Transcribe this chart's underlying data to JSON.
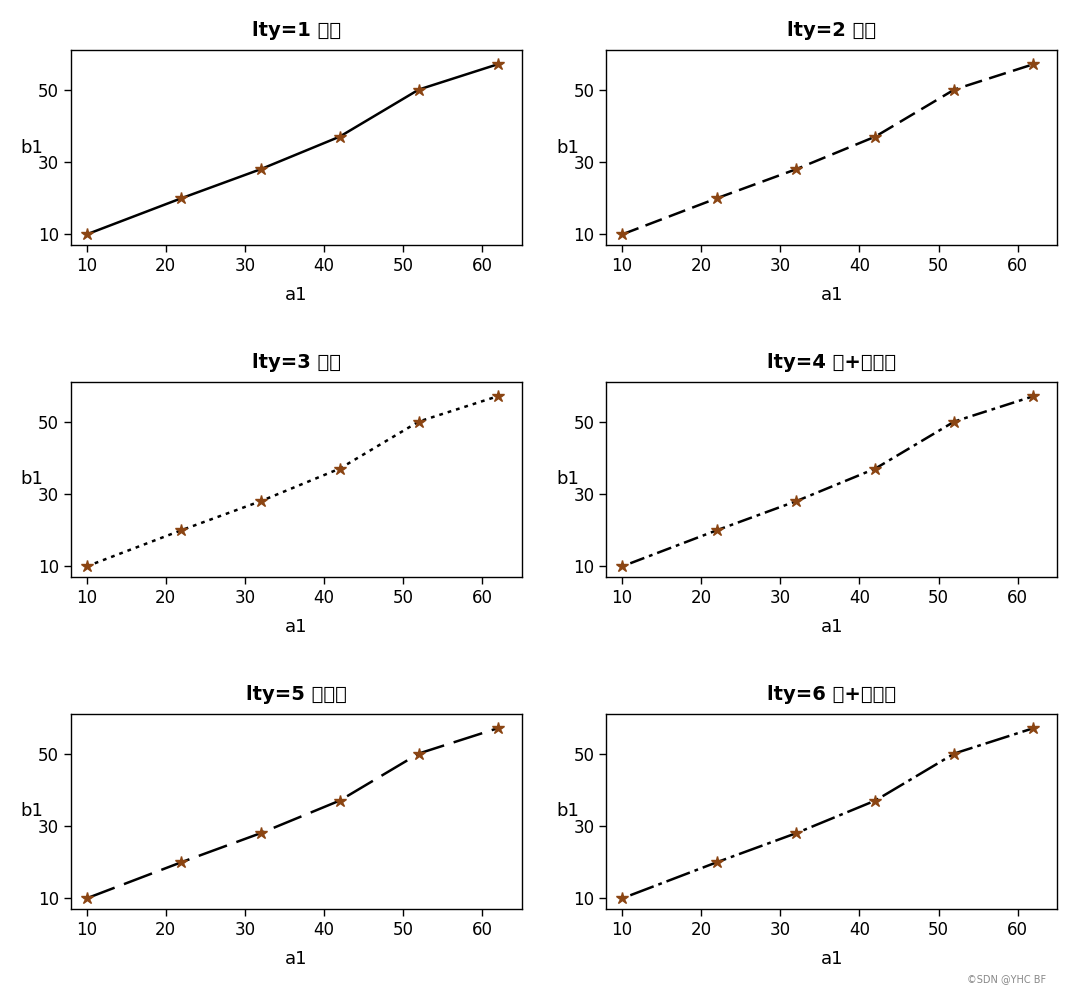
{
  "x": [
    10,
    22,
    32,
    42,
    52,
    62
  ],
  "y": [
    10,
    20,
    28,
    37,
    50,
    57
  ],
  "xlim": [
    8,
    65
  ],
  "ylim": [
    7,
    61
  ],
  "xticks": [
    10,
    20,
    30,
    40,
    50,
    60
  ],
  "yticks": [
    10,
    30,
    50
  ],
  "xlabel": "a1",
  "ylabel": "b1",
  "subplots": [
    {
      "title_bold": "lty=1",
      "title_normal": " 实线",
      "linestyle": "solid"
    },
    {
      "title_bold": "lty=2",
      "title_normal": " 虚线",
      "linestyle": "dashed"
    },
    {
      "title_bold": "lty=3",
      "title_normal": " 点线",
      "linestyle": "dotted"
    },
    {
      "title_bold": "lty=4",
      "title_normal": " 点+短虚线",
      "linestyle": "dashdot"
    },
    {
      "title_bold": "lty=5",
      "title_normal": " 长虚线",
      "linestyle": "longdash"
    },
    {
      "title_bold": "lty=6",
      "title_normal": " 点+长虚线",
      "linestyle": "dashdotdot"
    }
  ],
  "line_color": "#000000",
  "marker_color": "#8B4513",
  "background_color": "#ffffff",
  "fig_background": "#ffffff",
  "watermark": "©SDN @YHC BF",
  "line_width": 1.8,
  "title_fontsize": 14,
  "label_fontsize": 13,
  "tick_fontsize": 12
}
